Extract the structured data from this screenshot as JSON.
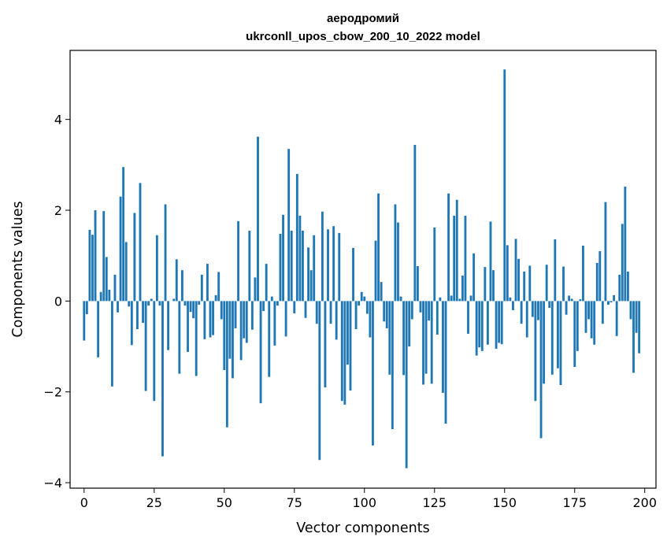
{
  "chart_data": {
    "type": "bar",
    "title": "аеродромий",
    "subtitle": "ukrconll_upos_cbow_200_10_2022 model",
    "xlabel": "Vector components",
    "ylabel": "Components values",
    "xlim": [
      -5,
      204
    ],
    "ylim": [
      -4.12,
      5.52
    ],
    "xticks": [
      0,
      25,
      50,
      75,
      100,
      125,
      150,
      175,
      200
    ],
    "yticks": [
      -4,
      -2,
      0,
      2,
      4
    ],
    "ytick_labels": [
      "−4",
      "−2",
      "0",
      "2",
      "4"
    ],
    "bar_color": "#1f77b4",
    "grid": false,
    "values": [
      -0.87,
      -0.29,
      1.57,
      1.46,
      2.0,
      -1.24,
      0.2,
      1.98,
      0.97,
      0.25,
      -1.88,
      0.58,
      -0.25,
      2.3,
      2.95,
      1.3,
      -0.12,
      -0.97,
      1.94,
      -0.62,
      2.6,
      -0.48,
      -1.98,
      -0.1,
      0.05,
      -2.2,
      1.45,
      -0.1,
      -3.42,
      2.13,
      -1.08,
      0.0,
      0.05,
      0.92,
      -1.6,
      0.68,
      -0.1,
      -1.12,
      -0.24,
      -0.38,
      -1.65,
      -0.08,
      0.58,
      -0.84,
      0.82,
      -0.8,
      -0.75,
      0.13,
      0.64,
      -0.4,
      -1.52,
      -2.78,
      -1.27,
      -1.7,
      -0.6,
      1.76,
      -1.3,
      -0.82,
      -0.92,
      1.55,
      -0.63,
      0.52,
      3.62,
      -2.25,
      -0.22,
      0.82,
      -1.67,
      0.1,
      -0.98,
      -0.1,
      1.48,
      1.9,
      -0.78,
      3.35,
      1.55,
      -0.27,
      2.8,
      1.88,
      1.55,
      -0.37,
      1.18,
      0.68,
      1.45,
      -0.5,
      -3.5,
      1.97,
      -1.9,
      1.58,
      -0.5,
      1.65,
      -0.85,
      1.5,
      -2.2,
      -2.28,
      -1.4,
      -1.97,
      1.17,
      -0.62,
      -0.1,
      0.2,
      0.1,
      -0.28,
      -0.8,
      -3.18,
      1.33,
      2.37,
      0.42,
      -0.45,
      -0.6,
      -1.62,
      -2.82,
      2.13,
      1.73,
      0.1,
      -1.63,
      -3.68,
      -1.0,
      -0.4,
      3.44,
      0.77,
      -0.25,
      -1.84,
      -1.6,
      -0.43,
      -1.82,
      1.62,
      -0.74,
      0.08,
      -2.02,
      -2.7,
      2.37,
      0.12,
      1.88,
      2.23,
      0.05,
      0.56,
      1.88,
      -0.72,
      0.12,
      1.05,
      -1.2,
      -1.02,
      -1.1,
      0.75,
      -0.96,
      1.75,
      0.68,
      -1.05,
      -0.92,
      -0.95,
      5.1,
      1.23,
      0.08,
      -0.2,
      1.37,
      0.93,
      -0.5,
      0.65,
      -0.8,
      0.78,
      -0.35,
      -2.2,
      -0.42,
      -3.02,
      -1.82,
      0.8,
      -0.15,
      -1.62,
      1.36,
      -1.48,
      -1.85,
      0.76,
      -0.3,
      0.12,
      0.05,
      -1.45,
      -1.1,
      0.04,
      1.22,
      -0.7,
      -0.4,
      -0.82,
      -0.96,
      0.84,
      1.1,
      -0.5,
      2.18,
      -0.08,
      -0.03,
      0.13,
      -0.77,
      0.58,
      1.7,
      2.52,
      0.65,
      -0.4,
      -1.58,
      -0.7,
      -1.15,
      0.0
    ]
  }
}
